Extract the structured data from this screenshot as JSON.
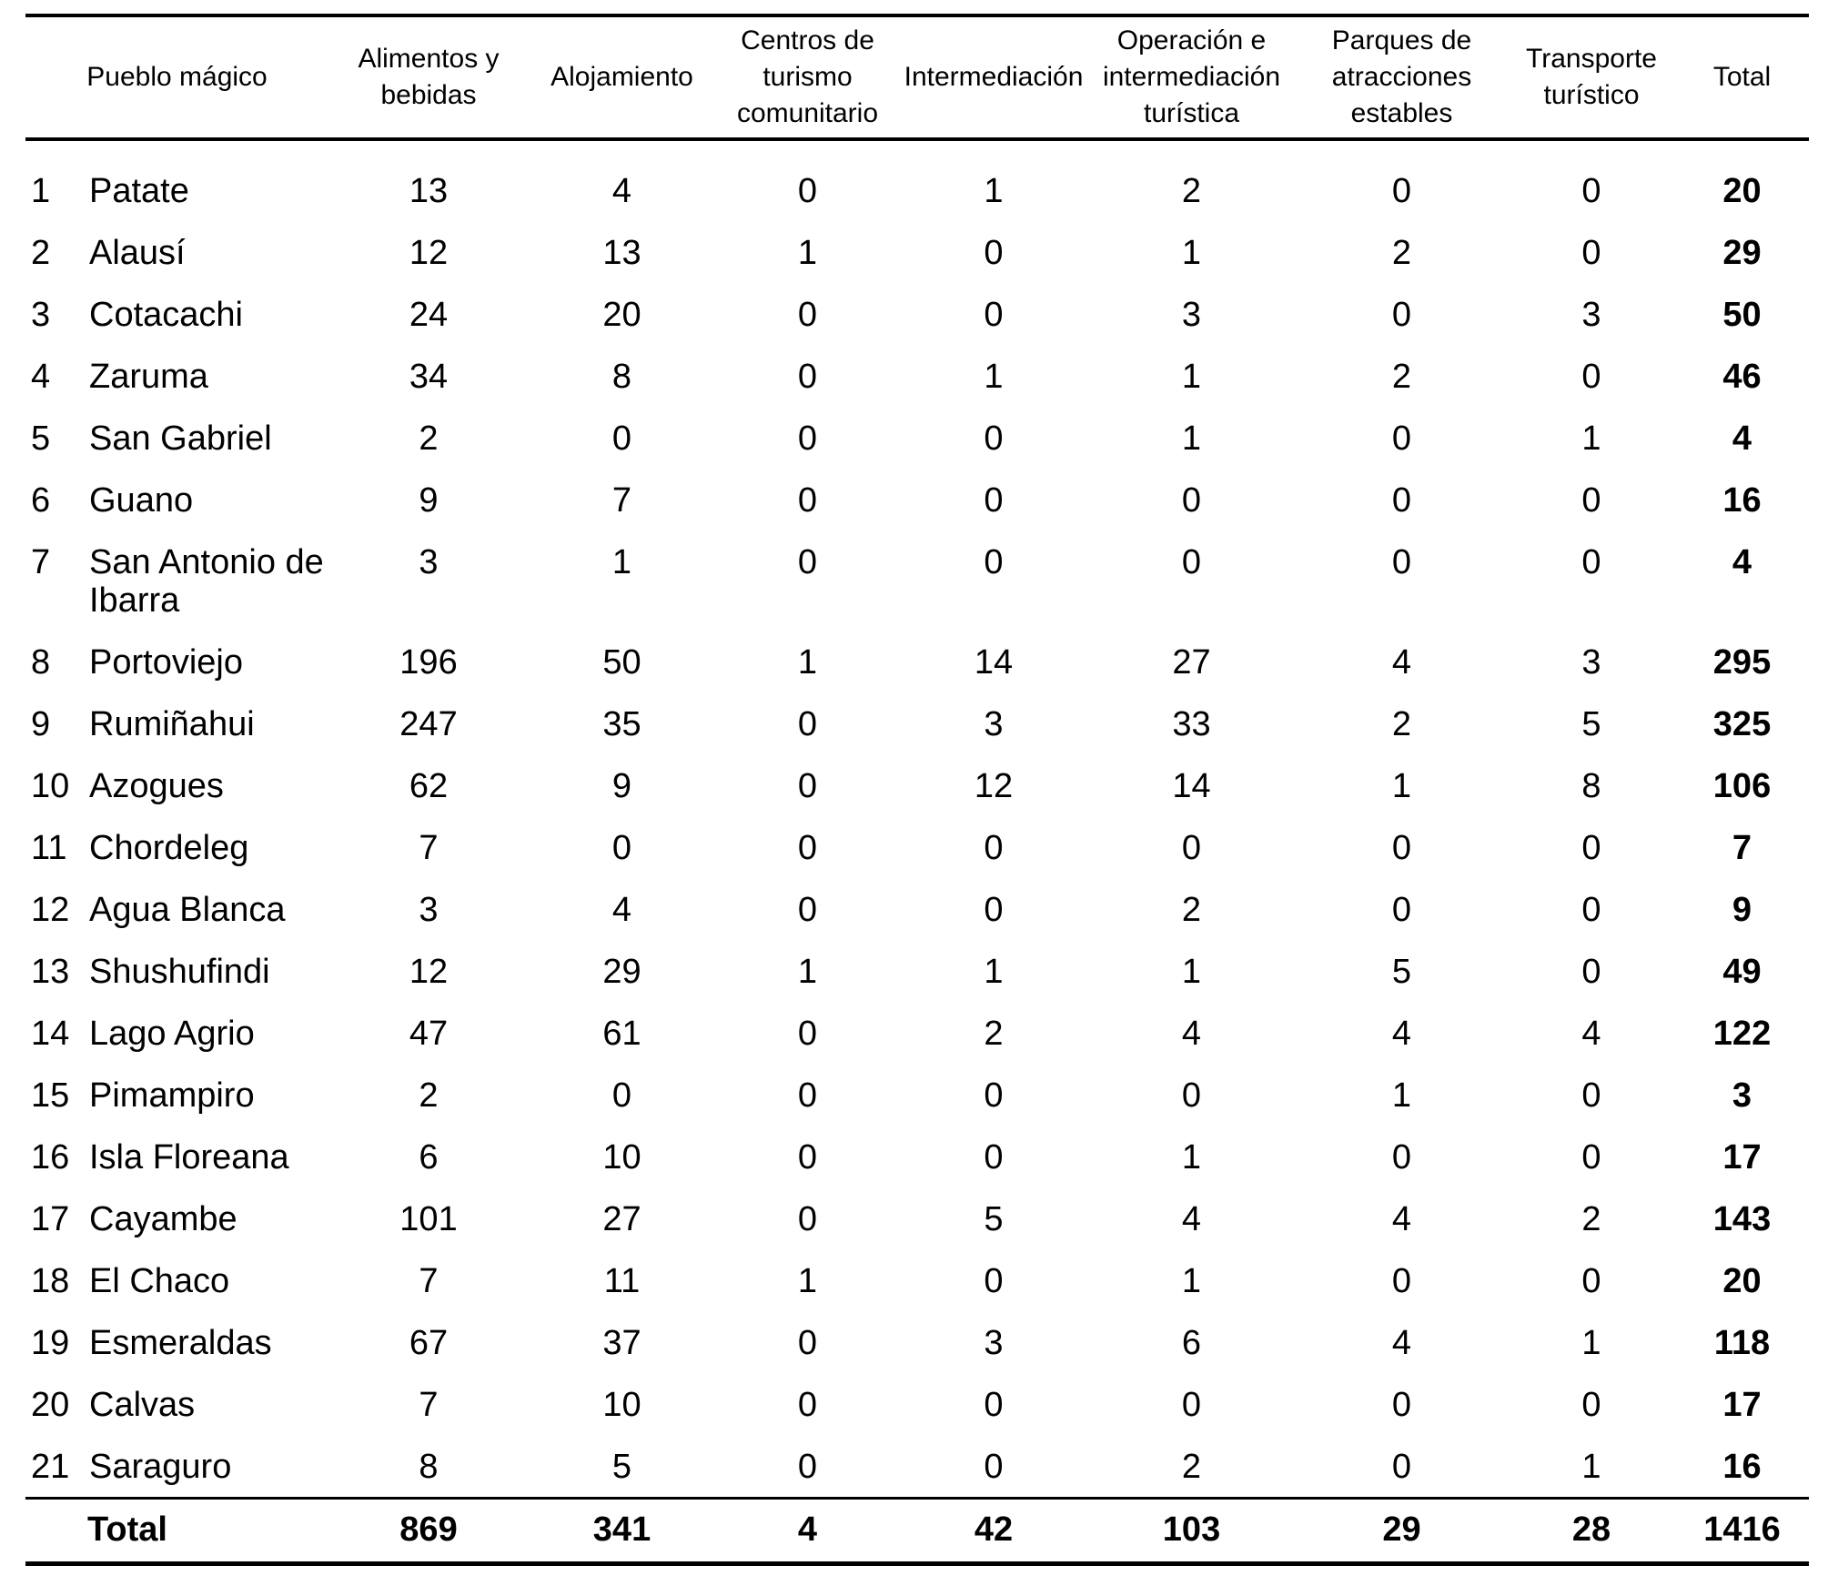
{
  "table": {
    "header": {
      "name": "Pueblo mágico",
      "value_cols": [
        "Alimentos y\nbebidas",
        "Alojamiento",
        "Centros de\nturismo\ncomunitario",
        "Intermediación",
        "Operación e\nintermediación\nturística",
        "Parques de\natracciones\nestables",
        "Transporte\nturístico"
      ],
      "total": "Total"
    },
    "rows": [
      {
        "n": 1,
        "name": "Patate",
        "values": [
          13,
          4,
          0,
          1,
          2,
          0,
          0
        ],
        "total": 20
      },
      {
        "n": 2,
        "name": "Alausí",
        "values": [
          12,
          13,
          1,
          0,
          1,
          2,
          0
        ],
        "total": 29
      },
      {
        "n": 3,
        "name": "Cotacachi",
        "values": [
          24,
          20,
          0,
          0,
          3,
          0,
          3
        ],
        "total": 50
      },
      {
        "n": 4,
        "name": "Zaruma",
        "values": [
          34,
          8,
          0,
          1,
          1,
          2,
          0
        ],
        "total": 46
      },
      {
        "n": 5,
        "name": "San Gabriel",
        "values": [
          2,
          0,
          0,
          0,
          1,
          0,
          1
        ],
        "total": 4
      },
      {
        "n": 6,
        "name": "Guano",
        "values": [
          9,
          7,
          0,
          0,
          0,
          0,
          0
        ],
        "total": 16
      },
      {
        "n": 7,
        "name": "San Antonio de Ibarra",
        "values": [
          3,
          1,
          0,
          0,
          0,
          0,
          0
        ],
        "total": 4
      },
      {
        "n": 8,
        "name": "Portoviejo",
        "values": [
          196,
          50,
          1,
          14,
          27,
          4,
          3
        ],
        "total": 295
      },
      {
        "n": 9,
        "name": "Rumiñahui",
        "values": [
          247,
          35,
          0,
          3,
          33,
          2,
          5
        ],
        "total": 325
      },
      {
        "n": 10,
        "name": "Azogues",
        "values": [
          62,
          9,
          0,
          12,
          14,
          1,
          8
        ],
        "total": 106
      },
      {
        "n": 11,
        "name": "Chordeleg",
        "values": [
          7,
          0,
          0,
          0,
          0,
          0,
          0
        ],
        "total": 7
      },
      {
        "n": 12,
        "name": "Agua Blanca",
        "values": [
          3,
          4,
          0,
          0,
          2,
          0,
          0
        ],
        "total": 9
      },
      {
        "n": 13,
        "name": "Shushufindi",
        "values": [
          12,
          29,
          1,
          1,
          1,
          5,
          0
        ],
        "total": 49
      },
      {
        "n": 14,
        "name": "Lago Agrio",
        "values": [
          47,
          61,
          0,
          2,
          4,
          4,
          4
        ],
        "total": 122
      },
      {
        "n": 15,
        "name": "Pimampiro",
        "values": [
          2,
          0,
          0,
          0,
          0,
          1,
          0
        ],
        "total": 3
      },
      {
        "n": 16,
        "name": "Isla Floreana",
        "values": [
          6,
          10,
          0,
          0,
          1,
          0,
          0
        ],
        "total": 17
      },
      {
        "n": 17,
        "name": "Cayambe",
        "values": [
          101,
          27,
          0,
          5,
          4,
          4,
          2
        ],
        "total": 143
      },
      {
        "n": 18,
        "name": "El Chaco",
        "values": [
          7,
          11,
          1,
          0,
          1,
          0,
          0
        ],
        "total": 20
      },
      {
        "n": 19,
        "name": "Esmeraldas",
        "values": [
          67,
          37,
          0,
          3,
          6,
          4,
          1
        ],
        "total": 118
      },
      {
        "n": 20,
        "name": "Calvas",
        "values": [
          7,
          10,
          0,
          0,
          0,
          0,
          0
        ],
        "total": 17
      },
      {
        "n": 21,
        "name": "Saraguro",
        "values": [
          8,
          5,
          0,
          0,
          2,
          0,
          1
        ],
        "total": 16
      }
    ],
    "footer": {
      "label": "Total",
      "values": [
        869,
        341,
        4,
        42,
        103,
        29,
        28
      ],
      "total": 1416
    }
  },
  "colors": {
    "text": "#000000",
    "rule": "#000000",
    "background": "#ffffff"
  }
}
